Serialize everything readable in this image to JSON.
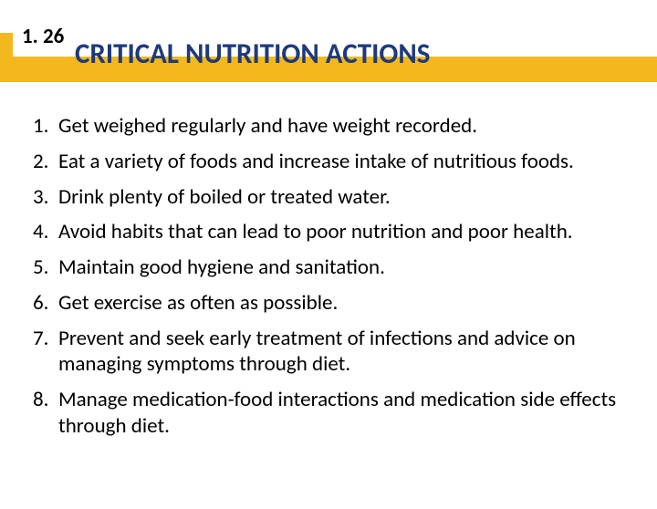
{
  "header": {
    "slide_number": "1. 26",
    "title": "CRITICAL NUTRITION ACTIONS",
    "stripe_color": "#f3b81e",
    "title_color": "#1f3a7a",
    "number_color": "#000000",
    "number_fontsize": 23,
    "title_fontsize": 31
  },
  "list": {
    "text_color": "#000000",
    "fontsize": 23,
    "items": [
      "Get weighed regularly and have weight recorded.",
      "Eat a variety of foods and increase intake of nutritious foods.",
      "Drink plenty of boiled or treated water.",
      "Avoid habits that can lead to poor nutrition and poor health.",
      "Maintain good hygiene and sanitation.",
      "Get exercise as often as possible.",
      "Prevent and seek early treatment of infections and advice on managing symptoms through diet.",
      "Manage medication-food interactions and medication side effects through diet."
    ]
  }
}
